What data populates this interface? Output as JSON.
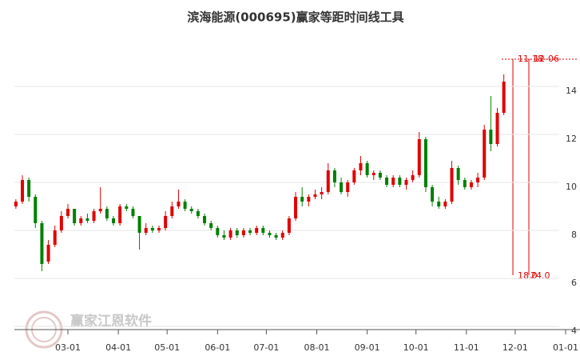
{
  "chart_data": {
    "type": "candlestick",
    "title": "滨海能源(000695)赢家等距时间线工具",
    "watermark": "赢家江恩软件",
    "up_color": "#e00000",
    "down_color": "#008000",
    "x": [
      "01-28",
      "02-01",
      "02-05",
      "02-09",
      "02-13",
      "02-17",
      "02-21",
      "02-25",
      "03-01",
      "03-05",
      "03-09",
      "03-13",
      "03-17",
      "03-21",
      "03-25",
      "03-29",
      "04-02",
      "04-06",
      "04-10",
      "04-14",
      "04-18",
      "04-22",
      "04-26",
      "04-30",
      "05-04",
      "05-08",
      "05-12",
      "05-16",
      "05-20",
      "05-24",
      "05-28",
      "06-01",
      "06-05",
      "06-09",
      "06-13",
      "06-17",
      "06-21",
      "06-25",
      "06-29",
      "07-03",
      "07-07",
      "07-11",
      "07-15",
      "07-19",
      "07-23",
      "07-27",
      "07-31",
      "08-04",
      "08-08",
      "08-12",
      "08-16",
      "08-20",
      "08-24",
      "08-28",
      "09-01",
      "09-05",
      "09-09",
      "09-13",
      "09-17",
      "09-21",
      "09-25",
      "09-29",
      "10-03",
      "10-07",
      "10-11",
      "10-15",
      "10-19",
      "10-23",
      "10-27",
      "10-31",
      "11-04",
      "11-08",
      "11-12",
      "11-16",
      "11-20",
      "11-24"
    ],
    "open": [
      9.0,
      9.2,
      10.1,
      9.4,
      8.3,
      6.7,
      7.4,
      8.0,
      8.6,
      8.9,
      8.3,
      8.5,
      8.4,
      8.8,
      8.9,
      8.5,
      8.3,
      9.0,
      8.9,
      8.6,
      7.9,
      8.1,
      8.0,
      8.1,
      8.6,
      9.0,
      9.2,
      8.9,
      8.8,
      8.6,
      8.3,
      8.1,
      7.8,
      7.7,
      8.0,
      7.8,
      8.0,
      7.9,
      8.1,
      7.9,
      7.8,
      7.7,
      7.9,
      8.5,
      9.4,
      9.2,
      9.4,
      9.5,
      9.6,
      10.5,
      10.0,
      9.6,
      10.0,
      10.5,
      10.8,
      10.3,
      10.4,
      10.2,
      9.9,
      10.2,
      9.9,
      10.1,
      10.3,
      11.8,
      9.8,
      9.2,
      9.0,
      9.2,
      10.6,
      10.1,
      9.8,
      10.0,
      10.2,
      12.2,
      11.6,
      12.9
    ],
    "high": [
      9.3,
      10.3,
      10.2,
      9.5,
      8.4,
      7.6,
      8.2,
      8.8,
      9.1,
      8.9,
      8.6,
      8.7,
      8.9,
      9.8,
      9.0,
      8.6,
      9.1,
      9.1,
      9.0,
      8.6,
      8.3,
      8.2,
      8.2,
      8.8,
      9.2,
      9.7,
      9.3,
      9.0,
      8.9,
      8.7,
      8.4,
      8.2,
      8.0,
      8.1,
      8.1,
      8.1,
      8.1,
      8.2,
      8.2,
      8.0,
      7.9,
      8.0,
      8.6,
      9.6,
      9.8,
      9.5,
      9.7,
      9.8,
      10.8,
      10.6,
      10.2,
      10.1,
      10.6,
      11.1,
      10.9,
      10.5,
      10.5,
      10.3,
      10.3,
      10.3,
      10.2,
      10.5,
      12.1,
      11.9,
      9.9,
      9.4,
      9.3,
      10.9,
      10.7,
      10.2,
      10.1,
      10.4,
      12.4,
      13.6,
      13.1,
      14.5
    ],
    "low": [
      8.9,
      9.1,
      9.2,
      8.1,
      6.3,
      6.6,
      7.3,
      7.9,
      8.5,
      8.2,
      8.2,
      8.3,
      8.3,
      8.7,
      8.4,
      8.2,
      8.2,
      8.8,
      8.5,
      7.2,
      7.8,
      7.9,
      7.9,
      8.0,
      8.5,
      8.9,
      8.8,
      8.7,
      8.5,
      8.2,
      8.0,
      7.7,
      7.6,
      7.6,
      7.7,
      7.7,
      7.8,
      7.8,
      7.8,
      7.7,
      7.6,
      7.6,
      7.8,
      8.4,
      9.0,
      9.0,
      9.3,
      9.3,
      9.5,
      9.8,
      9.5,
      9.4,
      9.9,
      10.3,
      10.2,
      10.1,
      10.1,
      9.8,
      9.8,
      9.8,
      9.7,
      10.0,
      10.2,
      9.6,
      9.0,
      8.9,
      8.9,
      9.1,
      9.9,
      9.7,
      9.7,
      9.8,
      10.1,
      11.3,
      11.5,
      12.8
    ],
    "close": [
      9.2,
      10.1,
      9.4,
      8.3,
      6.6,
      7.4,
      8.0,
      8.6,
      8.9,
      8.3,
      8.5,
      8.4,
      8.8,
      8.9,
      8.5,
      8.3,
      9.0,
      8.9,
      8.6,
      7.9,
      8.1,
      8.0,
      8.1,
      8.6,
      9.0,
      9.2,
      8.9,
      8.8,
      8.6,
      8.3,
      8.1,
      7.8,
      7.7,
      8.0,
      7.8,
      8.0,
      7.9,
      8.1,
      7.9,
      7.8,
      7.7,
      7.9,
      8.5,
      9.4,
      9.2,
      9.4,
      9.5,
      9.6,
      10.5,
      10.0,
      9.6,
      10.0,
      10.5,
      10.8,
      10.3,
      10.4,
      10.2,
      9.9,
      10.2,
      9.9,
      10.1,
      10.3,
      11.8,
      9.8,
      9.2,
      9.0,
      9.2,
      10.6,
      10.1,
      9.8,
      10.0,
      10.2,
      12.2,
      11.6,
      12.9,
      14.2
    ],
    "ylim": [
      3.9,
      15.9
    ],
    "yticks": [
      4,
      6,
      8,
      10,
      12,
      14
    ],
    "grid": true,
    "xticks": [
      "03-01",
      "04-01",
      "05-01",
      "06-01",
      "07-01",
      "08-01",
      "09-01",
      "10-01",
      "11-01",
      "12-01",
      "01-01"
    ],
    "annotations_top": [
      "11-18",
      "12-06"
    ],
    "annotations_bottom": [
      "18.0",
      "24.0"
    ]
  }
}
